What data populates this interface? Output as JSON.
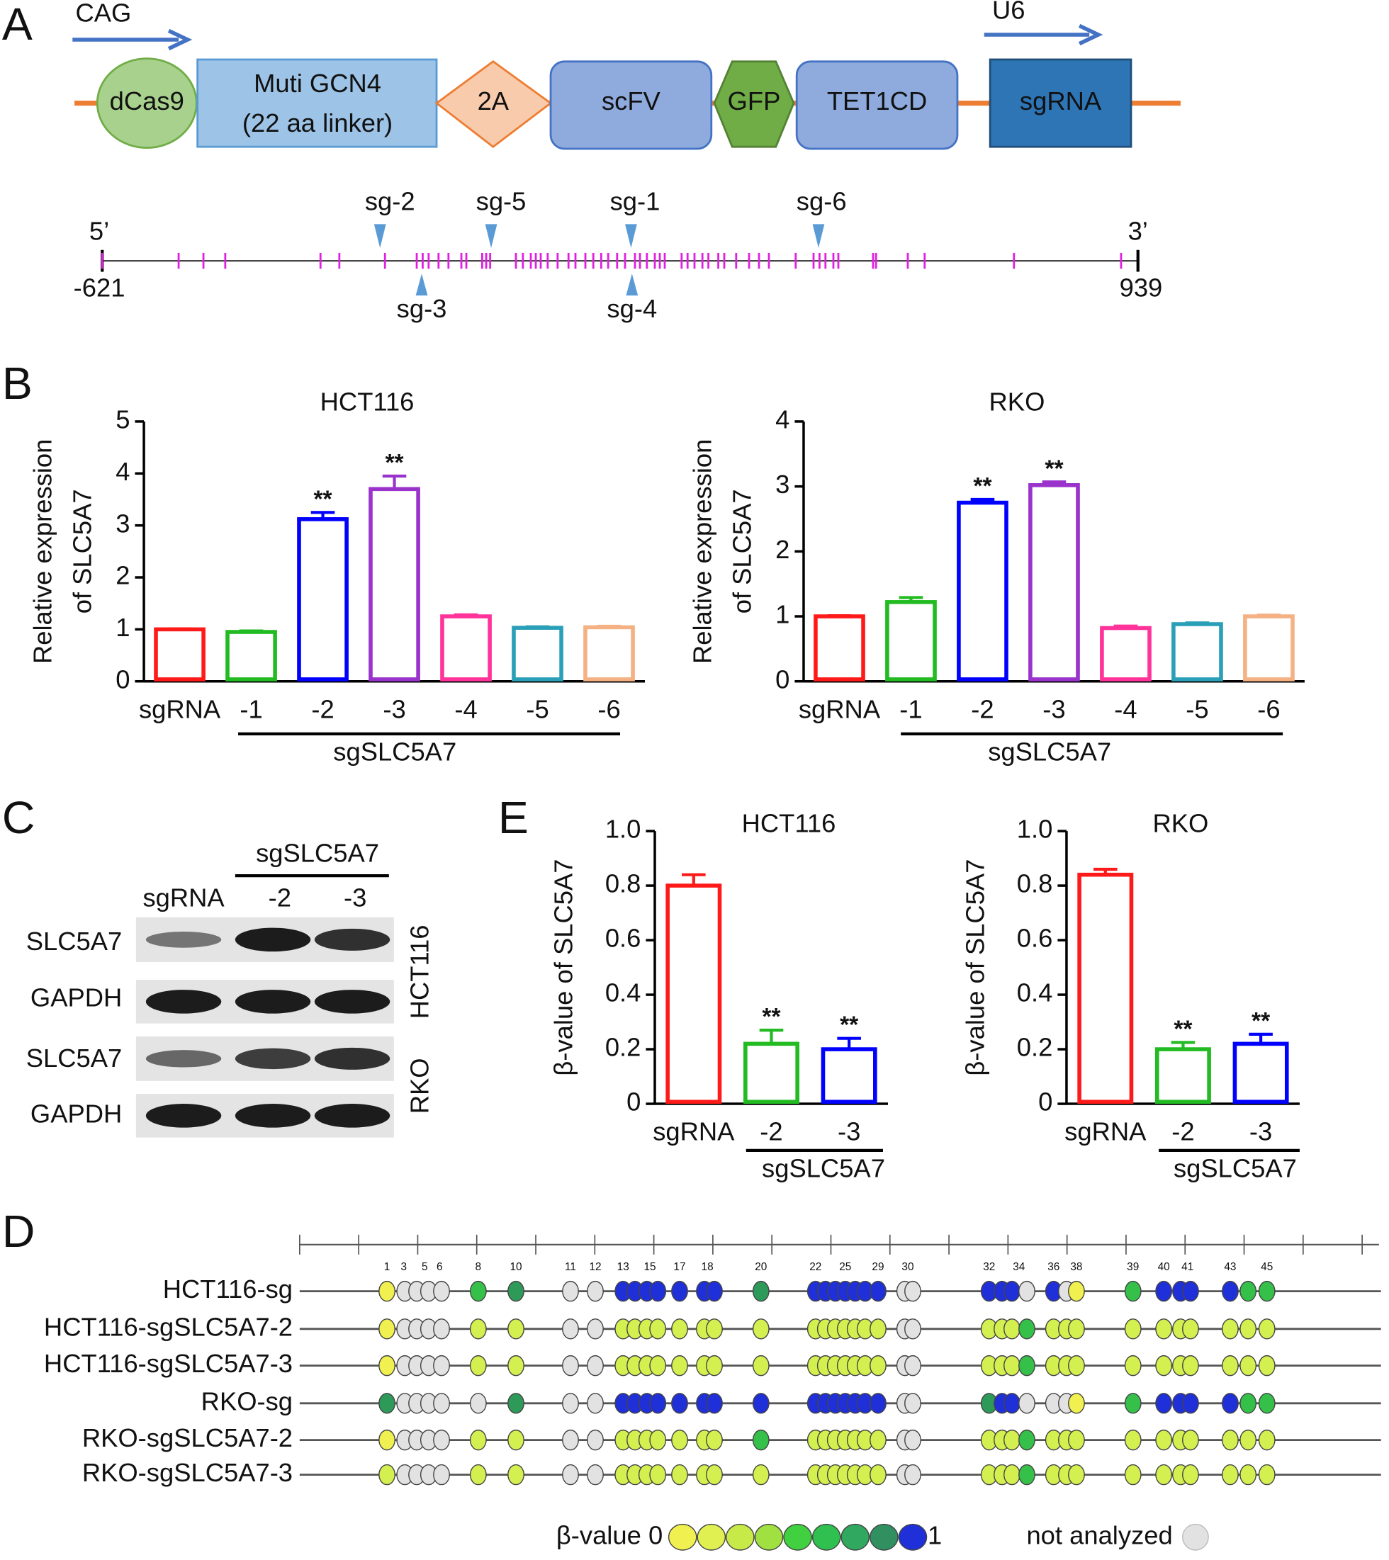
{
  "panel_a": {
    "letter": "A",
    "promoter_1": "CAG",
    "promoter_2": "U6",
    "elements": [
      "dCas9",
      "Muti GCN4",
      "(22 aa linker)",
      "2A",
      "scFV",
      "GFP",
      "TET1CD",
      "sgRNA"
    ],
    "end_5": "5’",
    "end_3": "3’",
    "start": "-621",
    "end": "939",
    "sgrnas": [
      "sg-2",
      "sg-5",
      "sg-1",
      "sg-6",
      "sg-3",
      "sg-4"
    ]
  },
  "panel_b": {
    "letter": "B"
  },
  "panel_c": {
    "letter": "C",
    "group": "sgSLC5A7",
    "lanes": [
      "sgRNA",
      "-2",
      "-3"
    ],
    "rows": [
      "SLC5A7",
      "GAPDH",
      "SLC5A7",
      "GAPDH"
    ],
    "cell_lines": [
      "HCT116",
      "RKO"
    ]
  },
  "panel_e": {
    "letter": "E"
  },
  "panel_d": {
    "letter": "D",
    "rows": [
      "HCT116-sg",
      "HCT116-sgSLC5A7-2",
      "HCT116-sgSLC5A7-3",
      "RKO-sg",
      "RKO-sgSLC5A7-2",
      "RKO-sgSLC5A7-3"
    ],
    "site_labels": [
      "1",
      "3",
      "5",
      "6",
      "8",
      "10",
      "11",
      "12",
      "13",
      "15",
      "17",
      "18",
      "20",
      "22",
      "25",
      "29",
      "30",
      "32",
      "34",
      "36",
      "38",
      "39",
      "40",
      "41",
      "43",
      "45"
    ],
    "legend_label": "β-value 0",
    "legend_max": "1",
    "legend_na": "not analyzed"
  },
  "chart_data": [
    {
      "type": "bar",
      "title": "HCT116",
      "ylabel": [
        "Relative expression",
        "of SLC5A7"
      ],
      "categories": [
        "sgRNA",
        "-1",
        "-2",
        "-3",
        "-4",
        "-5",
        "-6"
      ],
      "group_label": "sgSLC5A7",
      "values": [
        1,
        0.95,
        3.12,
        3.7,
        1.25,
        1.03,
        1.04
      ],
      "errors": [
        0.01,
        0.02,
        0.13,
        0.25,
        0.03,
        0.02,
        0.02
      ],
      "colors": [
        "#ff1a1a",
        "#22bb22",
        "#0000ff",
        "#9933cc",
        "#ff3399",
        "#2aa0b8",
        "#f4b183"
      ],
      "ylim": [
        0,
        5
      ],
      "yticks": [
        0,
        1,
        2,
        3,
        4,
        5
      ],
      "annotations": [
        {
          "category": "-2",
          "text": "**"
        },
        {
          "category": "-3",
          "text": "**"
        }
      ]
    },
    {
      "type": "bar",
      "title": "RKO",
      "ylabel": [
        "Relative expression",
        "of SLC5A7"
      ],
      "categories": [
        "sgRNA",
        "-1",
        "-2",
        "-3",
        "-4",
        "-5",
        "-6"
      ],
      "group_label": "sgSLC5A7",
      "values": [
        1,
        1.22,
        2.75,
        3.02,
        0.82,
        0.88,
        1.0
      ],
      "errors": [
        0.01,
        0.07,
        0.05,
        0.05,
        0.03,
        0.02,
        0.02
      ],
      "colors": [
        "#ff1a1a",
        "#22bb22",
        "#0000ff",
        "#9933cc",
        "#ff3399",
        "#2aa0b8",
        "#f4b183"
      ],
      "ylim": [
        0,
        4
      ],
      "yticks": [
        0,
        1,
        2,
        3,
        4
      ],
      "annotations": [
        {
          "category": "-2",
          "text": "**"
        },
        {
          "category": "-3",
          "text": "**"
        }
      ]
    },
    {
      "type": "bar",
      "title": "HCT116",
      "ylabel": "β-value of SLC5A7",
      "categories": [
        "sgRNA",
        "-2",
        "-3"
      ],
      "group_label": "sgSLC5A7",
      "values": [
        0.8,
        0.22,
        0.2
      ],
      "errors": [
        0.04,
        0.05,
        0.04
      ],
      "colors": [
        "#ff1a1a",
        "#22bb22",
        "#0000ff"
      ],
      "ylim": [
        0,
        1
      ],
      "yticks": [
        0,
        0.2,
        0.4,
        0.6,
        0.8,
        {
          "value": 1,
          "label": "1.0"
        }
      ],
      "annotations": [
        {
          "category": "-2",
          "text": "**"
        },
        {
          "category": "-3",
          "text": "**"
        }
      ]
    },
    {
      "type": "bar",
      "title": "RKO",
      "ylabel": "β-value of SLC5A7",
      "categories": [
        "sgRNA",
        "-2",
        "-3"
      ],
      "group_label": "sgSLC5A7",
      "values": [
        0.84,
        0.2,
        0.22
      ],
      "errors": [
        0.02,
        0.025,
        0.035
      ],
      "colors": [
        "#ff1a1a",
        "#22bb22",
        "#0000ff"
      ],
      "ylim": [
        0,
        1
      ],
      "yticks": [
        0,
        0.2,
        0.4,
        0.6,
        0.8,
        {
          "value": 1,
          "label": "1.0"
        }
      ],
      "annotations": [
        {
          "category": "-2",
          "text": "**"
        },
        {
          "category": "-3",
          "text": "**"
        }
      ]
    }
  ]
}
